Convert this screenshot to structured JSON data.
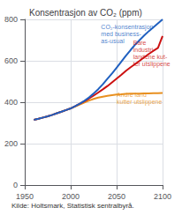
{
  "chart_data": {
    "type": "line",
    "title": "Konsentrasjon av CO₂ (ppm)",
    "source": "Kilde: Holtsmark, Statistisk sentralbyrå.",
    "x": [
      1960,
      1965,
      1970,
      1975,
      1980,
      1985,
      1990,
      1995,
      2000,
      2005,
      2010,
      2015,
      2020,
      2025,
      2030,
      2035,
      2040,
      2045,
      2050,
      2055,
      2060,
      2065,
      2070,
      2075,
      2080,
      2085,
      2090,
      2095,
      2100
    ],
    "xlim": [
      1950,
      2100
    ],
    "xticks": [
      1950,
      2000,
      2050,
      2100
    ],
    "ylim": [
      0,
      800
    ],
    "yticks": [
      0,
      200,
      400,
      600,
      800
    ],
    "grid": true,
    "series": [
      {
        "color": "#e89020",
        "values": [
          315,
          320,
          326,
          332,
          339,
          347,
          354,
          362,
          370,
          379,
          389,
          399,
          408,
          416,
          422,
          427,
          431,
          434,
          437,
          438,
          440,
          441,
          442,
          442,
          443,
          443,
          444,
          444,
          445
        ]
      },
      {
        "color": "#cc1111",
        "values": [
          315,
          320,
          326,
          332,
          339,
          347,
          354,
          362,
          370,
          381,
          393,
          405,
          418,
          432,
          447,
          462,
          478,
          496,
          514,
          532,
          551,
          568,
          584,
          600,
          617,
          633,
          648,
          662,
          720
        ]
      },
      {
        "color": "#2060c0",
        "values": [
          315,
          320,
          326,
          332,
          339,
          347,
          354,
          362,
          370,
          381,
          393,
          407,
          423,
          442,
          463,
          487,
          513,
          539,
          567,
          595,
          624,
          651,
          677,
          700,
          722,
          743,
          762,
          781,
          800
        ]
      }
    ],
    "annotations": [
      {
        "text": "CO₂-konsentrasjon\nmed business-\nas-usual",
        "x": 2033,
        "y": 680,
        "color": "#2060c0"
      },
      {
        "text": "Bare\nindustri-\nlandene kut-\nter utslippene",
        "x": 2068,
        "y": 570,
        "color": "#cc1111"
      },
      {
        "text": "Andre land\nkutter utslippene",
        "x": 2050,
        "y": 385,
        "color": "#e89020"
      }
    ]
  }
}
